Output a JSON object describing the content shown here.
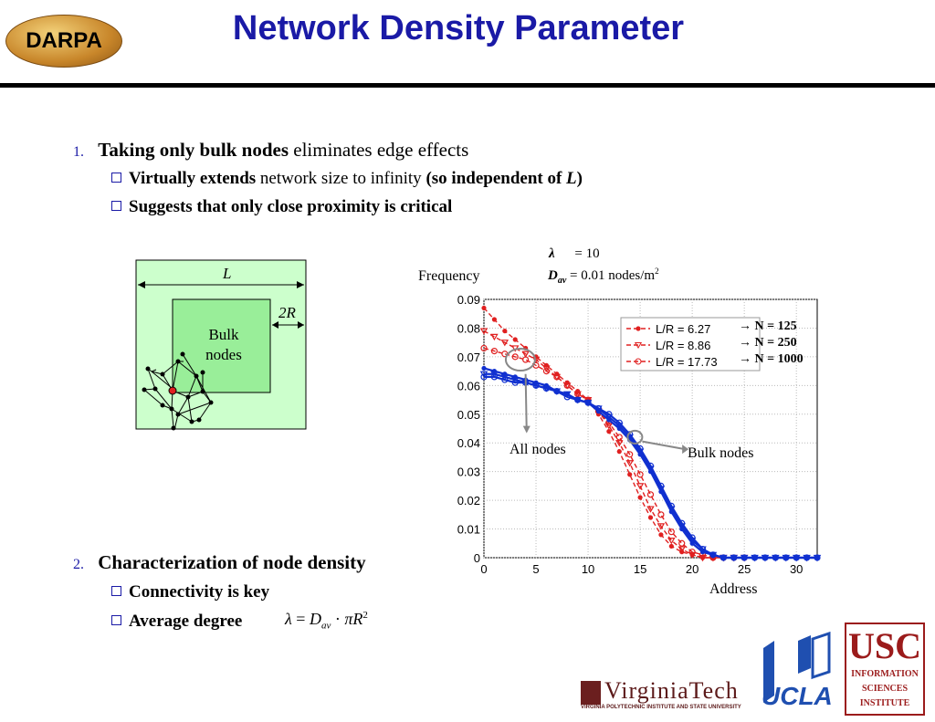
{
  "header": {
    "title": "Network Density Parameter",
    "logo_text": "DARPA"
  },
  "bullets": {
    "b1": {
      "number": "1.",
      "bold": "Taking only bulk nodes",
      "rest": " eliminates edge effects",
      "sub1_bold": "Virtually extends",
      "sub1_rest": " network size to infinity ",
      "sub1_paren": "(so independent of ",
      "sub1_L": "L",
      "sub1_close": ")",
      "sub2": "Suggests that only close proximity is critical"
    },
    "b2": {
      "number": "2.",
      "bold": "Characterization of node density",
      "sub1": "Connectivity is key",
      "sub2": "Average degree"
    }
  },
  "diagram": {
    "L_label": "L",
    "twoR_label": "2R",
    "bulk_line1": "Bulk",
    "bulk_line2": "nodes"
  },
  "params": {
    "lambda_sym": "λ",
    "lambda_eq": "= 10",
    "dav_sym": "D",
    "dav_sub": "av",
    "dav_eq": "= 0.01 nodes/m",
    "dav_sup": "2"
  },
  "formula": {
    "lambda": "λ",
    "eq": "=",
    "D": "D",
    "av": "av",
    "dot": "·",
    "pi": "π",
    "R": "R",
    "sq": "2"
  },
  "annotations": {
    "all_nodes": "All nodes",
    "bulk_nodes": "Bulk nodes",
    "n125": "N = 125",
    "n250": "N = 250",
    "n1000": "N = 1000"
  },
  "logos": {
    "vt": "VirginiaTech",
    "vt_sub": "VIRGINIA POLYTECHNIC INSTITUTE AND STATE UNIVERSITY",
    "ucla": "UCLA",
    "usc": "USC",
    "usc_l1": "INFORMATION",
    "usc_l2": "SCIENCES",
    "usc_l3": "INSTITUTE"
  },
  "colors": {
    "title": "#1a1aa6",
    "red_series": "#e02020",
    "blue_series": "#1030d0",
    "diagram_outer": "#ccffcc",
    "diagram_inner": "#99ee99"
  },
  "chart_data": {
    "type": "line",
    "xlabel": "Address",
    "ylabel": "Frequency",
    "xlim": [
      0,
      32
    ],
    "ylim": [
      0,
      0.09
    ],
    "xticks": [
      "0",
      "5",
      "10",
      "15",
      "20",
      "25",
      "30"
    ],
    "yticks": [
      "0",
      "0.01",
      "0.02",
      "0.03",
      "0.04",
      "0.05",
      "0.06",
      "0.07",
      "0.08",
      "0.09"
    ],
    "grid": true,
    "legend_position": "top-right",
    "x": [
      0,
      1,
      2,
      3,
      4,
      5,
      6,
      7,
      8,
      9,
      10,
      11,
      12,
      13,
      14,
      15,
      16,
      17,
      18,
      19,
      20,
      21,
      22,
      23,
      24,
      25,
      26,
      27,
      28,
      29,
      30,
      31,
      32
    ],
    "series": [
      {
        "name": "L/R = 6.27",
        "color": "#e02020",
        "style": "dashed",
        "marker": "dot",
        "values": [
          0.087,
          0.083,
          0.079,
          0.076,
          0.073,
          0.07,
          0.067,
          0.064,
          0.061,
          0.058,
          0.055,
          0.05,
          0.044,
          0.037,
          0.029,
          0.021,
          0.014,
          0.008,
          0.004,
          0.002,
          0.001,
          0,
          0,
          0,
          0,
          0,
          null,
          null,
          null,
          null,
          null,
          null,
          null
        ]
      },
      {
        "name": "L/R = 8.86",
        "color": "#e02020",
        "style": "dashed",
        "marker": "triangle",
        "values": [
          0.079,
          0.077,
          0.075,
          0.073,
          0.071,
          0.069,
          0.066,
          0.063,
          0.06,
          0.057,
          0.055,
          0.051,
          0.046,
          0.04,
          0.033,
          0.025,
          0.017,
          0.011,
          0.006,
          0.003,
          0.001,
          0,
          0,
          0,
          0,
          0,
          null,
          null,
          null,
          null,
          null,
          null,
          null
        ]
      },
      {
        "name": "L/R = 17.73",
        "color": "#e02020",
        "style": "dashed",
        "marker": "circle",
        "values": [
          0.073,
          0.072,
          0.071,
          0.07,
          0.069,
          0.067,
          0.065,
          0.063,
          0.06,
          0.057,
          0.055,
          0.051,
          0.047,
          0.042,
          0.036,
          0.029,
          0.022,
          0.015,
          0.009,
          0.005,
          0.002,
          0.001,
          0,
          0,
          0,
          0,
          null,
          null,
          null,
          null,
          null,
          null,
          null
        ]
      },
      {
        "name": "N = 125",
        "color": "#1030d0",
        "style": "solid",
        "marker": "dot",
        "values": [
          0.066,
          0.065,
          0.064,
          0.063,
          0.062,
          0.061,
          0.06,
          0.058,
          0.057,
          0.055,
          0.054,
          0.051,
          0.048,
          0.045,
          0.041,
          0.036,
          0.03,
          0.023,
          0.016,
          0.01,
          0.005,
          0.002,
          0.001,
          0,
          0,
          0,
          0,
          0,
          0,
          0,
          0,
          0,
          0
        ]
      },
      {
        "name": "N = 250",
        "color": "#1030d0",
        "style": "solid",
        "marker": "triangle",
        "values": [
          0.064,
          0.064,
          0.063,
          0.062,
          0.061,
          0.06,
          0.059,
          0.058,
          0.057,
          0.055,
          0.054,
          0.052,
          0.049,
          0.046,
          0.042,
          0.037,
          0.031,
          0.024,
          0.017,
          0.011,
          0.006,
          0.003,
          0.001,
          0,
          0,
          0,
          0,
          0,
          0,
          0,
          0,
          0,
          0
        ]
      },
      {
        "name": "N = 1000",
        "color": "#1030d0",
        "style": "solid",
        "marker": "circle",
        "values": [
          0.063,
          0.063,
          0.062,
          0.061,
          0.061,
          0.06,
          0.059,
          0.058,
          0.056,
          0.055,
          0.054,
          0.052,
          0.05,
          0.047,
          0.043,
          0.038,
          0.032,
          0.025,
          0.018,
          0.012,
          0.007,
          0.003,
          0.001,
          0,
          0,
          0,
          0,
          0,
          0,
          0,
          0,
          0,
          0
        ]
      }
    ]
  }
}
